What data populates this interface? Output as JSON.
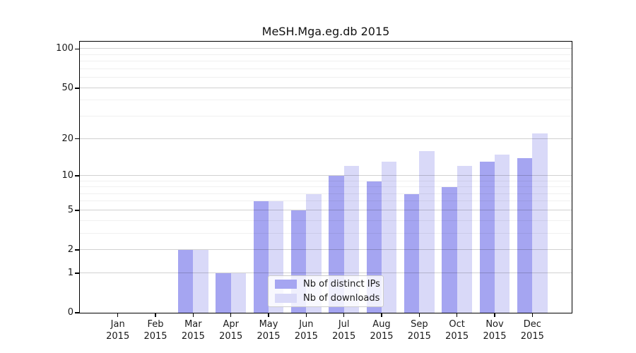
{
  "chart_data": {
    "type": "bar",
    "title": "MeSH.Mga.eg.db 2015",
    "scale": "log1p",
    "grid": true,
    "categories": [
      "Jan",
      "Feb",
      "Mar",
      "Apr",
      "May",
      "Jun",
      "Jul",
      "Aug",
      "Sep",
      "Oct",
      "Nov",
      "Dec"
    ],
    "year_label": "2015",
    "series": [
      {
        "name": "Nb of distinct IPs",
        "color": "#a5a5f1",
        "values": [
          0,
          0,
          2,
          1,
          6,
          5,
          10,
          9,
          7,
          8,
          13,
          14
        ]
      },
      {
        "name": "Nb of downloads",
        "color": "#d9d9f8",
        "values": [
          0,
          0,
          2,
          1,
          6,
          7,
          12,
          13,
          16,
          12,
          15,
          22
        ]
      }
    ],
    "y_axis": {
      "major_ticks": [
        0,
        1,
        2,
        5,
        10,
        20,
        50,
        100
      ],
      "minor_ticks": [
        3,
        4,
        6,
        7,
        8,
        9,
        30,
        40,
        60,
        70,
        80,
        90
      ],
      "ylim": [
        0,
        115
      ]
    },
    "legend": {
      "position": "bottom-center-inside"
    },
    "frame_color": "#000000"
  }
}
